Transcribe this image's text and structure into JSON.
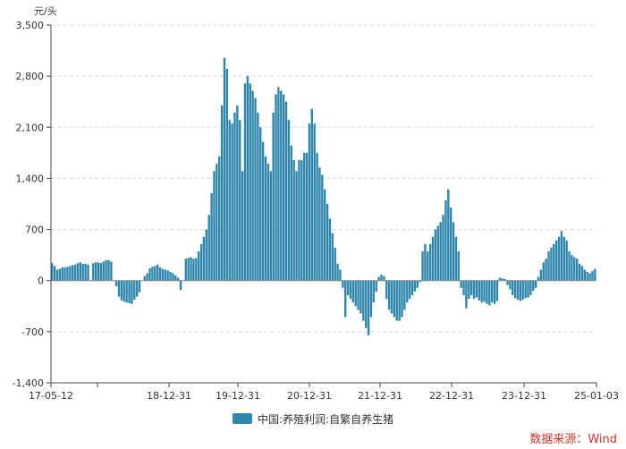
{
  "chart_data": {
    "type": "bar",
    "unit_label": "元/头",
    "ylim": [
      -1400,
      3500
    ],
    "yticks": [
      3500,
      2800,
      2100,
      1400,
      700,
      0,
      -700,
      -1400
    ],
    "ytick_labels": [
      "3,500",
      "2,800",
      "2,100",
      "1,400",
      "700",
      "0",
      "-700",
      "-1,400"
    ],
    "xticks": [
      "17-05-12",
      "18-12-31",
      "19-12-31",
      "20-12-31",
      "21-12-31",
      "22-12-31",
      "23-12-31",
      "25-01-03"
    ],
    "grid": true,
    "legend_position": "bottom",
    "colors": {
      "bar": "#2e86ab",
      "grid": "#d8d8d8",
      "axis": "#444444"
    },
    "series": [
      {
        "name": "中国:养殖利润:自繁自养生猪",
        "values": [
          240,
          200,
          150,
          160,
          180,
          180,
          190,
          200,
          210,
          220,
          240,
          250,
          230,
          230,
          220,
          0,
          240,
          250,
          250,
          240,
          260,
          280,
          280,
          260,
          0,
          -80,
          -220,
          -270,
          -290,
          -300,
          -310,
          -320,
          -260,
          -220,
          -160,
          0,
          60,
          100,
          170,
          190,
          200,
          220,
          180,
          160,
          150,
          140,
          120,
          100,
          70,
          40,
          -130,
          0,
          300,
          310,
          320,
          300,
          310,
          400,
          500,
          600,
          700,
          900,
          1200,
          1500,
          1600,
          1700,
          2400,
          3050,
          2900,
          2200,
          2150,
          2300,
          2400,
          2200,
          1500,
          2700,
          2800,
          2700,
          2600,
          2500,
          2300,
          2100,
          1900,
          1700,
          1600,
          1500,
          2300,
          2550,
          2650,
          2600,
          2550,
          2450,
          2200,
          1850,
          1650,
          1500,
          1650,
          1650,
          1750,
          1750,
          2150,
          2350,
          2150,
          1750,
          1550,
          1450,
          1250,
          1050,
          850,
          650,
          450,
          230,
          150,
          -100,
          -500,
          -200,
          -250,
          -300,
          -350,
          -400,
          -450,
          -550,
          -650,
          -750,
          -500,
          -300,
          -150,
          50,
          80,
          60,
          -250,
          -400,
          -450,
          -500,
          -550,
          -550,
          -500,
          -400,
          -300,
          -250,
          -200,
          -150,
          -100,
          -20,
          400,
          500,
          400,
          500,
          600,
          700,
          750,
          800,
          900,
          1100,
          1250,
          1000,
          800,
          600,
          400,
          -100,
          -200,
          -380,
          -250,
          -200,
          -250,
          -230,
          -270,
          -300,
          -290,
          -320,
          -340,
          -300,
          -320,
          -280,
          40,
          30,
          20,
          -60,
          -120,
          -200,
          -240,
          -260,
          -280,
          -260,
          -240,
          -230,
          -200,
          -140,
          -100,
          50,
          150,
          250,
          300,
          400,
          450,
          500,
          550,
          600,
          680,
          600,
          550,
          400,
          350,
          320,
          300,
          230,
          200,
          150,
          120,
          100,
          130,
          160
        ]
      }
    ]
  },
  "footer": {
    "source": "数据来源：Wind"
  }
}
